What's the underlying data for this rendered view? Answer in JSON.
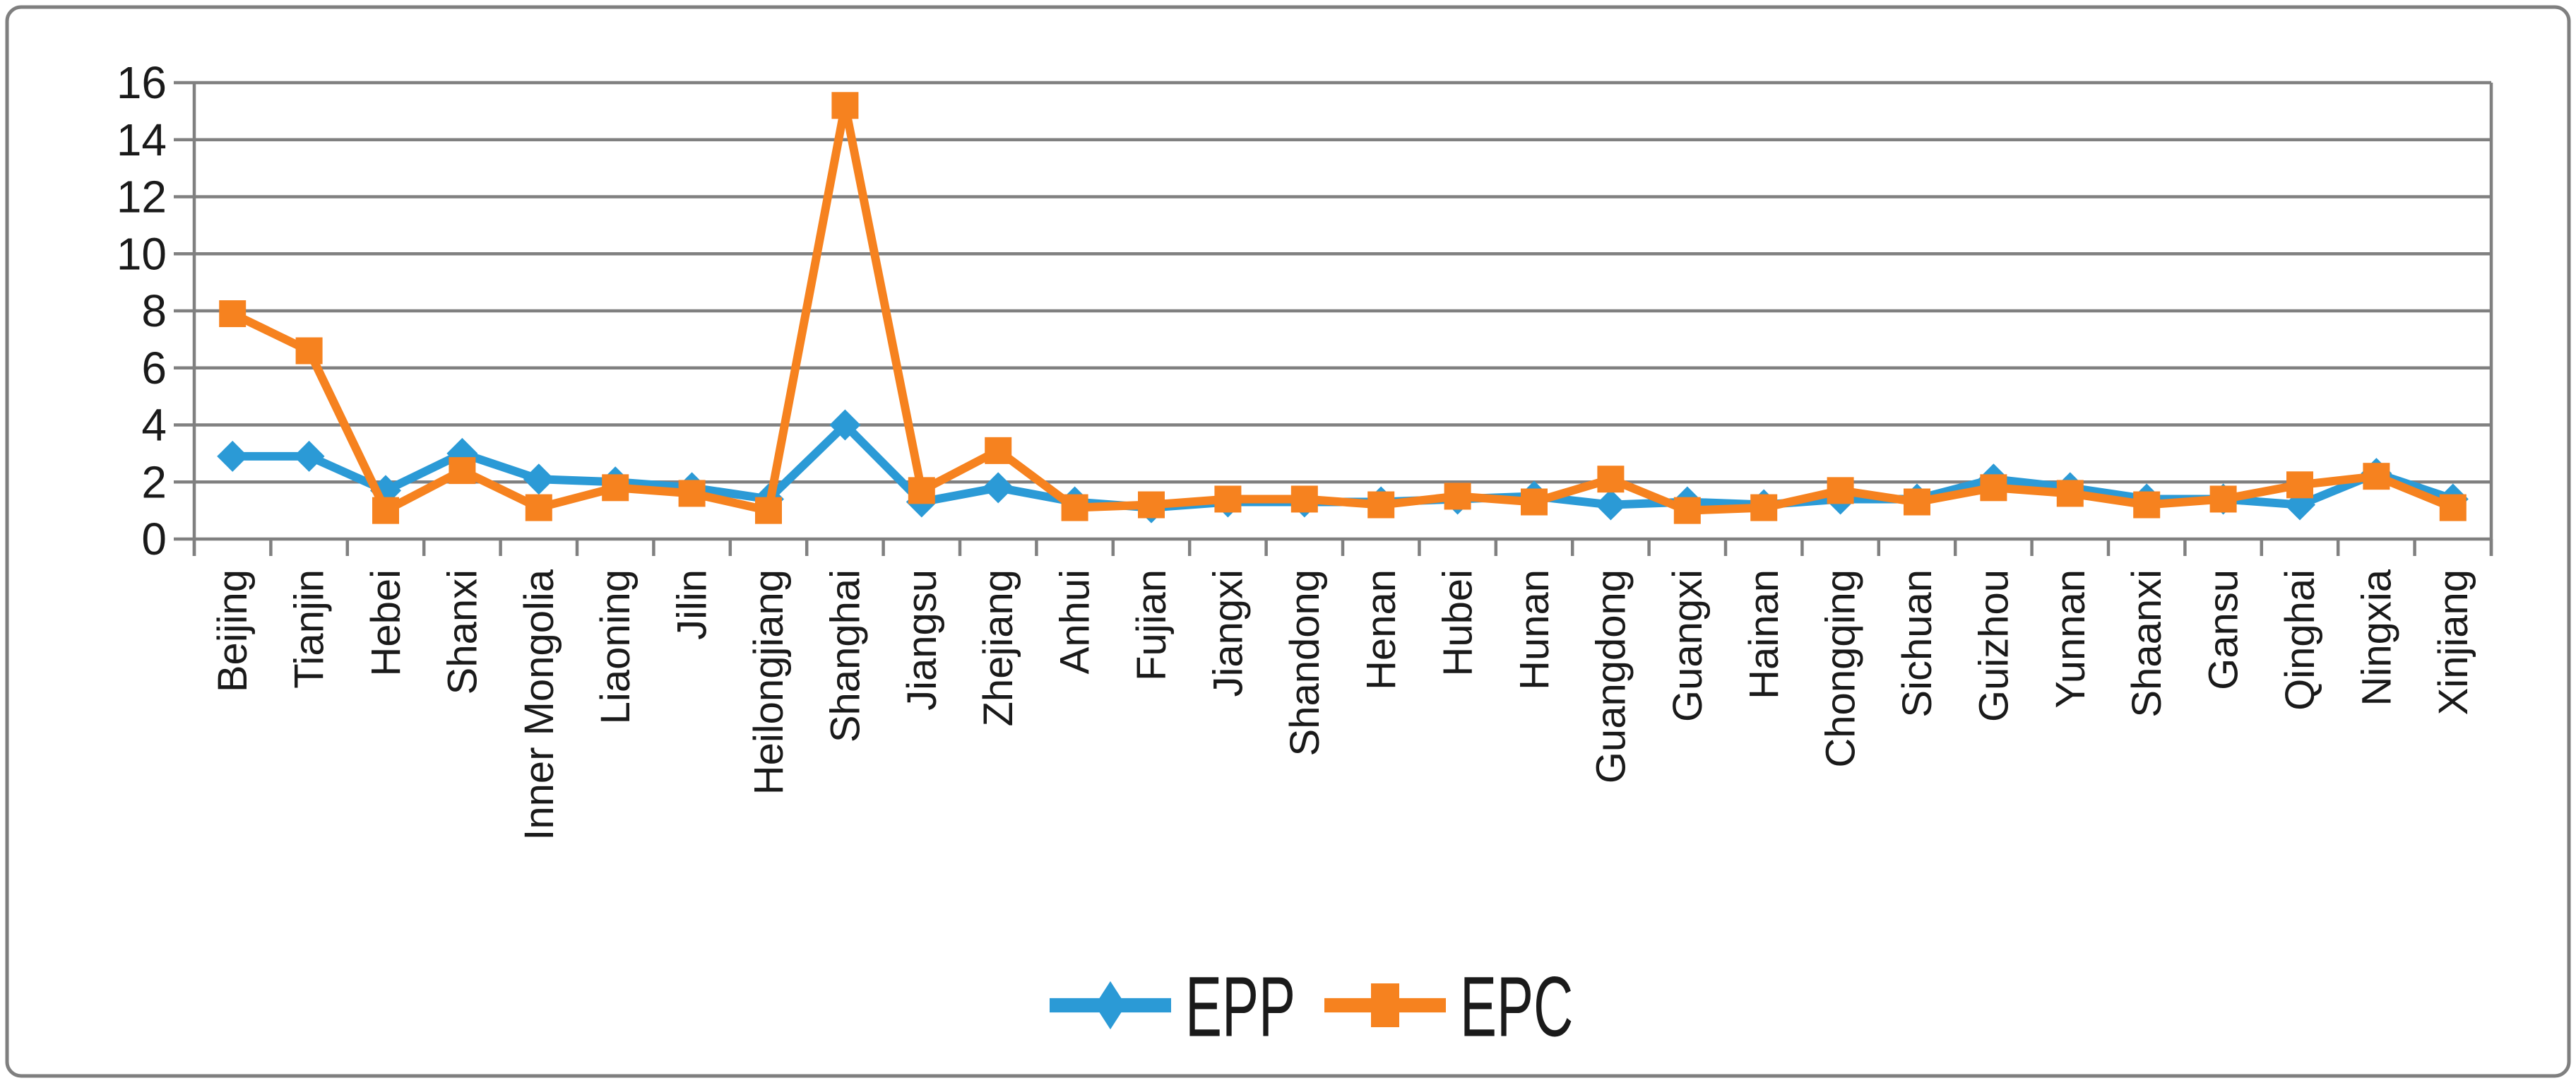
{
  "chart_data": {
    "type": "line",
    "title": "",
    "xlabel": "",
    "ylabel": "",
    "categories": [
      "Beijing",
      "Tianjin",
      "Hebei",
      "Shanxi",
      "Inner Mongolia",
      "Liaoning",
      "Jilin",
      "Heilongjiang",
      "Shanghai",
      "Jiangsu",
      "Zhejiang",
      "Anhui",
      "Fujian",
      "Jiangxi",
      "Shandong",
      "Henan",
      "Hubei",
      "Hunan",
      "Guangdong",
      "Guangxi",
      "Hainan",
      "Chongqing",
      "Sichuan",
      "Guizhou",
      "Yunnan",
      "Shaanxi",
      "Gansu",
      "Qinghai",
      "Ningxia",
      "Xinjiang"
    ],
    "series": [
      {
        "name": "EPP",
        "color": "#2B9AD6",
        "marker": "diamond",
        "values": [
          2.9,
          2.9,
          1.7,
          3.0,
          2.1,
          2.0,
          1.8,
          1.4,
          4.0,
          1.3,
          1.8,
          1.3,
          1.1,
          1.3,
          1.3,
          1.3,
          1.4,
          1.5,
          1.2,
          1.3,
          1.2,
          1.4,
          1.4,
          2.1,
          1.8,
          1.4,
          1.4,
          1.2,
          2.3,
          1.4
        ]
      },
      {
        "name": "EPC",
        "color": "#F6821F",
        "marker": "square",
        "values": [
          7.9,
          6.6,
          1.0,
          2.4,
          1.1,
          1.8,
          1.6,
          1.0,
          15.2,
          1.7,
          3.1,
          1.1,
          1.2,
          1.4,
          1.4,
          1.2,
          1.5,
          1.3,
          2.1,
          1.0,
          1.1,
          1.7,
          1.3,
          1.8,
          1.6,
          1.2,
          1.4,
          1.9,
          2.2,
          1.1
        ]
      }
    ],
    "ylim": [
      0,
      16
    ],
    "ytick_step": 2,
    "ytick_labels": [
      "0",
      "2",
      "4",
      "6",
      "8",
      "10",
      "12",
      "14",
      "16"
    ],
    "grid": "horizontal",
    "legend_position": "bottom"
  },
  "style": {
    "grid_color": "#808080",
    "axis_color": "#808080",
    "border_color": "#7F7F7F",
    "text_color": "#1A1A1A",
    "background": "#FFFFFF"
  }
}
